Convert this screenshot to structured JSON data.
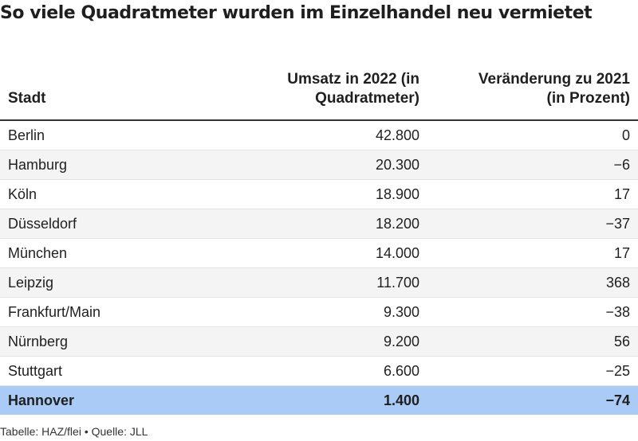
{
  "chart_data": {
    "type": "table",
    "title": "So viele Quadratmeter wurden im Einzelhandel neu vermietet",
    "columns": [
      "Stadt",
      "Umsatz in 2022 (in Quadratmeter)",
      "Veränderung zu 2021 (in Prozent)"
    ],
    "rows": [
      {
        "stadt": "Berlin",
        "umsatz": "42.800",
        "veraenderung": "0"
      },
      {
        "stadt": "Hamburg",
        "umsatz": "20.300",
        "veraenderung": "−6"
      },
      {
        "stadt": "Köln",
        "umsatz": "18.900",
        "veraenderung": "17"
      },
      {
        "stadt": "Düsseldorf",
        "umsatz": "18.200",
        "veraenderung": "−37"
      },
      {
        "stadt": "München",
        "umsatz": "14.000",
        "veraenderung": "17"
      },
      {
        "stadt": "Leipzig",
        "umsatz": "11.700",
        "veraenderung": "368"
      },
      {
        "stadt": "Frankfurt/Main",
        "umsatz": "9.300",
        "veraenderung": "−38"
      },
      {
        "stadt": "Nürnberg",
        "umsatz": "9.200",
        "veraenderung": "56"
      },
      {
        "stadt": "Stuttgart",
        "umsatz": "6.600",
        "veraenderung": "−25"
      },
      {
        "stadt": "Hannover",
        "umsatz": "1.400",
        "veraenderung": "−74",
        "highlight": true
      }
    ],
    "footer": "Tabelle: HAZ/flei • Quelle: JLL",
    "colors": {
      "highlight_row": "#a9cbf6",
      "stripe_row": "#f4f4f4"
    }
  }
}
